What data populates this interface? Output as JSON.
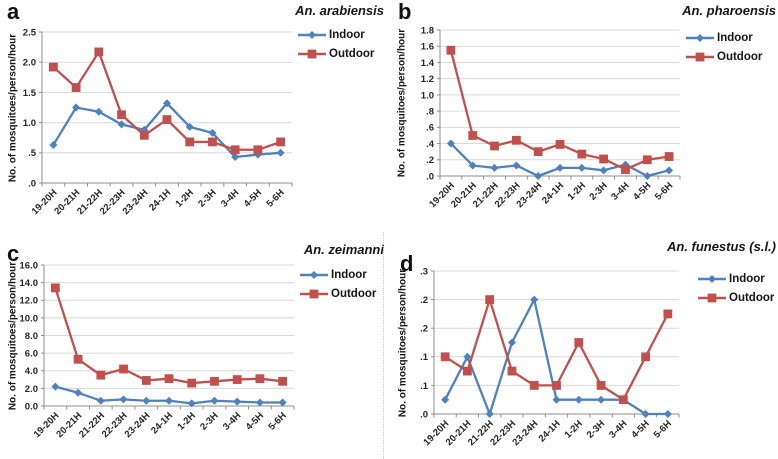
{
  "figure": {
    "ylabel": "No. of mosquitoes/person/hour",
    "legend": {
      "indoor": "Indoor",
      "outdoor": "Outdoor"
    },
    "colors": {
      "indoor": "#4F81BD",
      "outdoor": "#C0504D",
      "gridline": "#D9D9D9",
      "axis": "#8E8E8E",
      "text": "#262626"
    },
    "categories": [
      "19-20H",
      "20-21H",
      "21-22H",
      "22-23H",
      "23-24H",
      "24-1H",
      "1-2H",
      "2-3H",
      "3-4H",
      "4-5H",
      "5-6H"
    ]
  },
  "chart_data": [
    {
      "panel": "a",
      "type": "line",
      "title": "An. arabiensis",
      "xlabel": "",
      "ylabel": "No. of mosquitoes/person/hour",
      "ylim": [
        0,
        2.5
      ],
      "ymax": 2.5,
      "grid": true,
      "legend_position": "right",
      "ytick_labels_bottom_up": [
        ".0",
        ".5",
        "1.0",
        "1.5",
        "2.0",
        "2.5"
      ],
      "categories": [
        "19-20H",
        "20-21H",
        "21-22H",
        "22-23H",
        "23-24H",
        "24-1H",
        "1-2H",
        "2-3H",
        "3-4H",
        "4-5H",
        "5-6H"
      ],
      "series": [
        {
          "name": "Indoor",
          "marker": "diamond",
          "color_key": "indoor",
          "values": [
            0.63,
            1.25,
            1.18,
            0.97,
            0.88,
            1.32,
            0.93,
            0.83,
            0.43,
            0.47,
            0.5
          ]
        },
        {
          "name": "Outdoor",
          "marker": "square",
          "color_key": "outdoor",
          "values": [
            1.92,
            1.58,
            2.17,
            1.13,
            0.79,
            1.05,
            0.68,
            0.68,
            0.55,
            0.55,
            0.68
          ]
        }
      ]
    },
    {
      "panel": "b",
      "type": "line",
      "title": "An. pharoensis",
      "xlabel": "",
      "ylabel": "No. of mosquitoes/person/hour",
      "ylim": [
        0,
        1.8
      ],
      "ymax": 1.8,
      "grid": true,
      "legend_position": "right",
      "ytick_labels_bottom_up": [
        ".0",
        ".2",
        ".4",
        ".6",
        ".8",
        "1.0",
        "1.2",
        "1.4",
        "1.6",
        "1.8"
      ],
      "categories": [
        "19-20H",
        "20-21H",
        "21-22H",
        "22-23H",
        "23-24H",
        "24-1H",
        "1-2H",
        "2-3H",
        "3-4H",
        "4-5H",
        "5-6H"
      ],
      "series": [
        {
          "name": "Indoor",
          "marker": "diamond",
          "color_key": "indoor",
          "values": [
            0.4,
            0.13,
            0.1,
            0.13,
            0.0,
            0.1,
            0.1,
            0.07,
            0.14,
            0.0,
            0.07
          ]
        },
        {
          "name": "Outdoor",
          "marker": "square",
          "color_key": "outdoor",
          "values": [
            1.55,
            0.5,
            0.37,
            0.44,
            0.3,
            0.39,
            0.27,
            0.21,
            0.08,
            0.2,
            0.24
          ]
        }
      ]
    },
    {
      "panel": "c",
      "type": "line",
      "title": "An. zeimanni",
      "xlabel": "",
      "ylabel": "No. of mosquitoes/person/hour",
      "ylim": [
        0,
        16.0
      ],
      "ymax": 16.0,
      "grid": true,
      "legend_position": "right",
      "ytick_labels_bottom_up": [
        "0.0",
        "2.0",
        "4.0",
        "6.0",
        "8.0",
        "10.0",
        "12.0",
        "14.0",
        "16.0"
      ],
      "categories": [
        "19-20H",
        "20-21H",
        "21-22H",
        "22-23H",
        "23-24H",
        "24-1H",
        "1-2H",
        "2-3H",
        "3-4H",
        "4-5H",
        "5-6H"
      ],
      "series": [
        {
          "name": "Indoor",
          "marker": "diamond",
          "color_key": "indoor",
          "values": [
            2.2,
            1.5,
            0.6,
            0.75,
            0.6,
            0.6,
            0.3,
            0.6,
            0.5,
            0.4,
            0.4
          ]
        },
        {
          "name": "Outdoor",
          "marker": "square",
          "color_key": "outdoor",
          "values": [
            13.4,
            5.3,
            3.5,
            4.2,
            2.9,
            3.1,
            2.6,
            2.8,
            3.0,
            3.1,
            2.8
          ]
        }
      ]
    },
    {
      "panel": "d",
      "type": "line",
      "title": "An. funestus (s.l.)",
      "xlabel": "",
      "ylabel": "No. of mosquitoes/person/hour",
      "ylim": [
        0,
        0.25
      ],
      "ymax": 0.25,
      "grid": true,
      "legend_position": "right",
      "ytick_labels_bottom_up": [
        ".0",
        ".1",
        ".1",
        ".2",
        ".2",
        ".3"
      ],
      "categories": [
        "19-20H",
        "20-21H",
        "21-22H",
        "22-23H",
        "23-24H",
        "24-1H",
        "1-2H",
        "2-3H",
        "3-4H",
        "4-5H",
        "5-6H"
      ],
      "series": [
        {
          "name": "Indoor",
          "marker": "diamond",
          "color_key": "indoor",
          "values": [
            0.025,
            0.1,
            0.0,
            0.125,
            0.2,
            0.025,
            0.025,
            0.025,
            0.025,
            0.0,
            0.0
          ]
        },
        {
          "name": "Outdoor",
          "marker": "square",
          "color_key": "outdoor",
          "values": [
            0.1,
            0.075,
            0.2,
            0.075,
            0.05,
            0.05,
            0.125,
            0.05,
            0.025,
            0.1,
            0.175
          ]
        }
      ]
    }
  ]
}
